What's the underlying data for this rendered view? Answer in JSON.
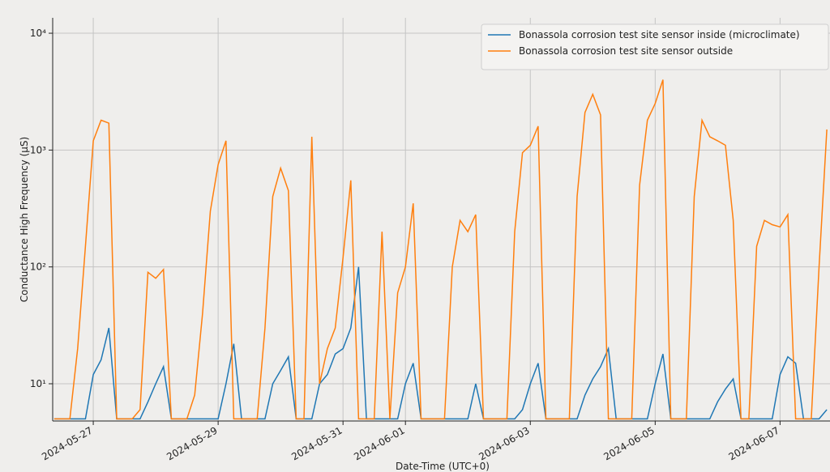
{
  "chart_data": {
    "type": "line",
    "xlabel": "Date-Time (UTC+0)",
    "ylabel": "Conductance High Frequency (µS)",
    "log_y": true,
    "grid": true,
    "legend": "upper right",
    "xlim": [
      "2024-05-26T08:24",
      "2024-06-07T19:12"
    ],
    "xticks": [
      "2024-05-27",
      "2024-05-29",
      "2024-05-31",
      "2024-06-01",
      "2024-06-03",
      "2024-06-05",
      "2024-06-07"
    ],
    "ylim": [
      4.8,
      13550
    ],
    "yticks": [
      {
        "value": 10,
        "label": "10¹"
      },
      {
        "value": 100,
        "label": "10²"
      },
      {
        "value": 1000,
        "label": "10³"
      },
      {
        "value": 10000,
        "label": "10⁴"
      }
    ],
    "x": [
      "2024-05-26T09:00",
      "2024-05-26T12:00",
      "2024-05-26T15:00",
      "2024-05-26T18:00",
      "2024-05-26T21:00",
      "2024-05-27T00:00",
      "2024-05-27T03:00",
      "2024-05-27T06:00",
      "2024-05-27T09:00",
      "2024-05-27T12:00",
      "2024-05-27T15:00",
      "2024-05-27T18:00",
      "2024-05-27T21:00",
      "2024-05-28T00:00",
      "2024-05-28T03:00",
      "2024-05-28T06:00",
      "2024-05-28T09:00",
      "2024-05-28T12:00",
      "2024-05-28T15:00",
      "2024-05-28T18:00",
      "2024-05-28T21:00",
      "2024-05-29T00:00",
      "2024-05-29T03:00",
      "2024-05-29T06:00",
      "2024-05-29T09:00",
      "2024-05-29T12:00",
      "2024-05-29T15:00",
      "2024-05-29T18:00",
      "2024-05-29T21:00",
      "2024-05-30T00:00",
      "2024-05-30T03:00",
      "2024-05-30T06:00",
      "2024-05-30T09:00",
      "2024-05-30T12:00",
      "2024-05-30T15:00",
      "2024-05-30T18:00",
      "2024-05-30T21:00",
      "2024-05-31T00:00",
      "2024-05-31T03:00",
      "2024-05-31T06:00",
      "2024-05-31T09:00",
      "2024-05-31T12:00",
      "2024-05-31T15:00",
      "2024-05-31T18:00",
      "2024-05-31T21:00",
      "2024-06-01T00:00",
      "2024-06-01T03:00",
      "2024-06-01T06:00",
      "2024-06-01T09:00",
      "2024-06-01T12:00",
      "2024-06-01T15:00",
      "2024-06-01T18:00",
      "2024-06-01T21:00",
      "2024-06-02T00:00",
      "2024-06-02T03:00",
      "2024-06-02T06:00",
      "2024-06-02T09:00",
      "2024-06-02T12:00",
      "2024-06-02T15:00",
      "2024-06-02T18:00",
      "2024-06-02T21:00",
      "2024-06-03T00:00",
      "2024-06-03T03:00",
      "2024-06-03T06:00",
      "2024-06-03T09:00",
      "2024-06-03T12:00",
      "2024-06-03T15:00",
      "2024-06-03T18:00",
      "2024-06-03T21:00",
      "2024-06-04T00:00",
      "2024-06-04T03:00",
      "2024-06-04T06:00",
      "2024-06-04T09:00",
      "2024-06-04T12:00",
      "2024-06-04T15:00",
      "2024-06-04T18:00",
      "2024-06-04T21:00",
      "2024-06-05T00:00",
      "2024-06-05T03:00",
      "2024-06-05T06:00",
      "2024-06-05T09:00",
      "2024-06-05T12:00",
      "2024-06-05T15:00",
      "2024-06-05T18:00",
      "2024-06-05T21:00",
      "2024-06-06T00:00",
      "2024-06-06T03:00",
      "2024-06-06T06:00",
      "2024-06-06T09:00",
      "2024-06-06T12:00",
      "2024-06-06T15:00",
      "2024-06-06T18:00",
      "2024-06-06T21:00",
      "2024-06-07T00:00",
      "2024-06-07T03:00",
      "2024-06-07T06:00",
      "2024-06-07T09:00",
      "2024-06-07T12:00",
      "2024-06-07T15:00",
      "2024-06-07T18:00"
    ],
    "series": [
      {
        "name": "Bonassola corrosion test site sensor inside (microclimate)",
        "color": "#1f77b4",
        "values": [
          5,
          5,
          5,
          5,
          5,
          12,
          16,
          30,
          5,
          5,
          5,
          5,
          7,
          10,
          14,
          5,
          5,
          5,
          5,
          5,
          5,
          5,
          10,
          22,
          5,
          5,
          5,
          5,
          10,
          13,
          17,
          5,
          5,
          5,
          10,
          12,
          18,
          20,
          30,
          100,
          5,
          5,
          5,
          5,
          5,
          10,
          15,
          5,
          5,
          5,
          5,
          5,
          5,
          5,
          10,
          5,
          5,
          5,
          5,
          5,
          6,
          10,
          15,
          5,
          5,
          5,
          5,
          5,
          8,
          11,
          14,
          20,
          5,
          5,
          5,
          5,
          5,
          10,
          18,
          5,
          5,
          5,
          5,
          5,
          5,
          7,
          9,
          11,
          5,
          5,
          5,
          5,
          5,
          12,
          17,
          15,
          5,
          5,
          5,
          6
        ]
      },
      {
        "name": "Bonassola corrosion test site sensor outside",
        "color": "#ff7f0e",
        "values": [
          5,
          5,
          5,
          20,
          150,
          1200,
          1800,
          1700,
          5,
          5,
          5,
          6,
          90,
          80,
          95,
          5,
          5,
          5,
          8,
          40,
          300,
          750,
          1200,
          5,
          5,
          5,
          5,
          30,
          400,
          700,
          450,
          5,
          5,
          1300,
          10,
          20,
          30,
          120,
          550,
          5,
          5,
          5,
          200,
          5,
          60,
          100,
          350,
          5,
          5,
          5,
          5,
          100,
          250,
          200,
          280,
          5,
          5,
          5,
          5,
          200,
          950,
          1100,
          1600,
          5,
          5,
          5,
          5,
          400,
          2100,
          3000,
          2000,
          5,
          5,
          5,
          5,
          500,
          1800,
          2500,
          4000,
          5,
          5,
          5,
          400,
          1800,
          1300,
          1200,
          1100,
          250,
          5,
          5,
          150,
          250,
          230,
          220,
          280,
          5,
          5,
          5,
          100,
          1500
        ]
      }
    ]
  }
}
